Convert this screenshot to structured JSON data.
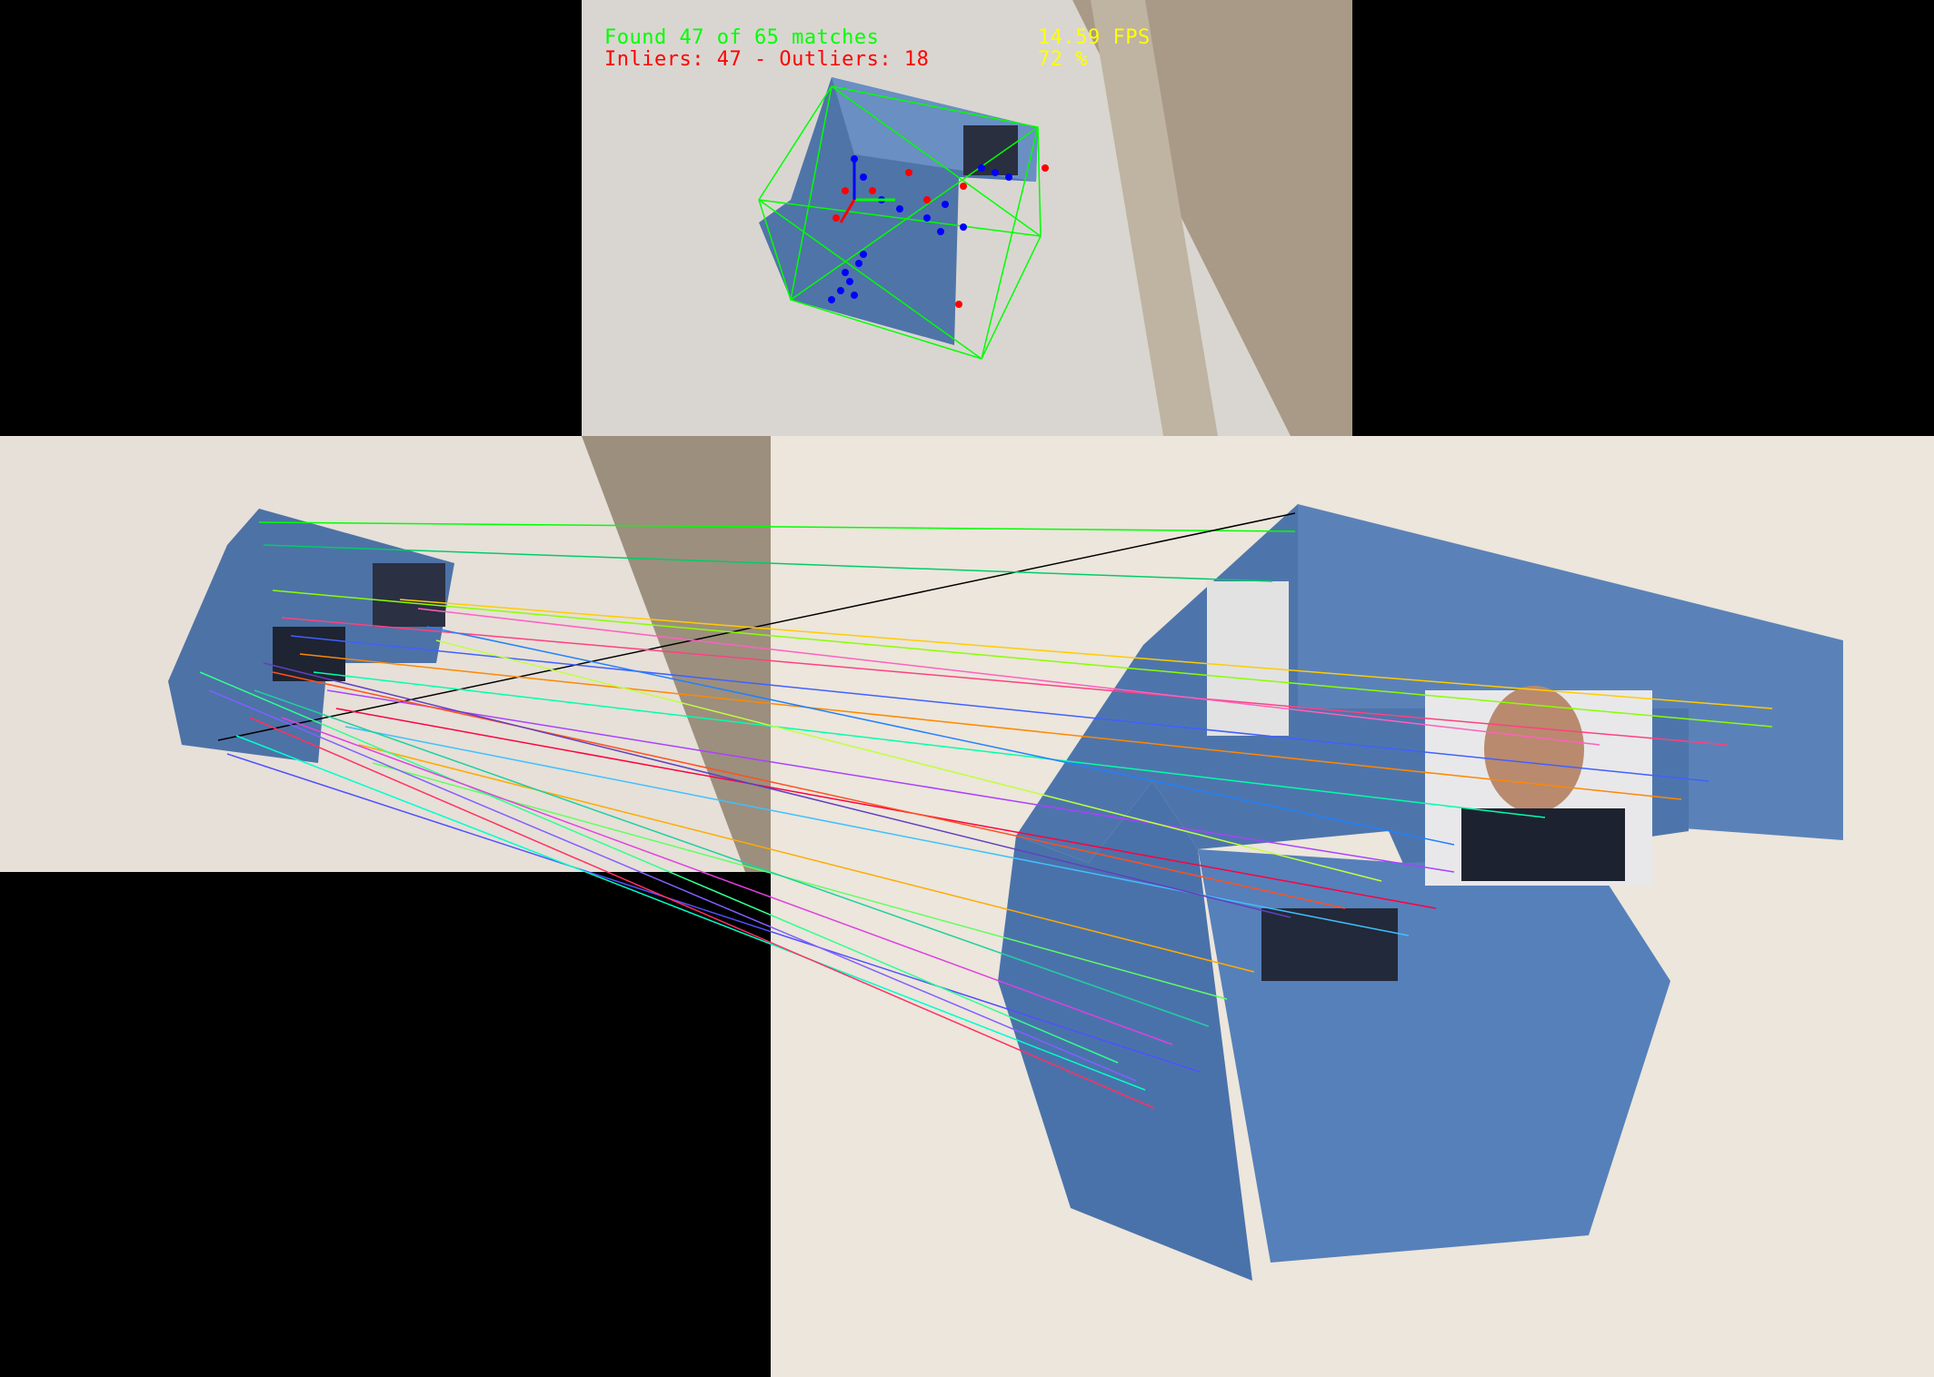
{
  "hud": {
    "matches": "Found 47 of 65 matches",
    "inliers": "Inliers: 47 - Outliers: 18",
    "fps": "14.59 FPS",
    "ratio": "72 %"
  },
  "colors": {
    "matches": "#00ff00",
    "inliers": "#ff0000",
    "fps": "#ffff00",
    "box": "#00ff00",
    "inlier_point": "#0000ff",
    "outlier_point": "#ff0000",
    "card": "#5b7fb3",
    "table": "#ece4d8",
    "floor": "#9a8f80"
  },
  "stats": {
    "found": 47,
    "total": 65,
    "inliers": 47,
    "outliers": 18,
    "fps": 14.59,
    "ratio_percent": 72
  },
  "icons": {
    "pose-axes": "pose-axes-icon"
  }
}
